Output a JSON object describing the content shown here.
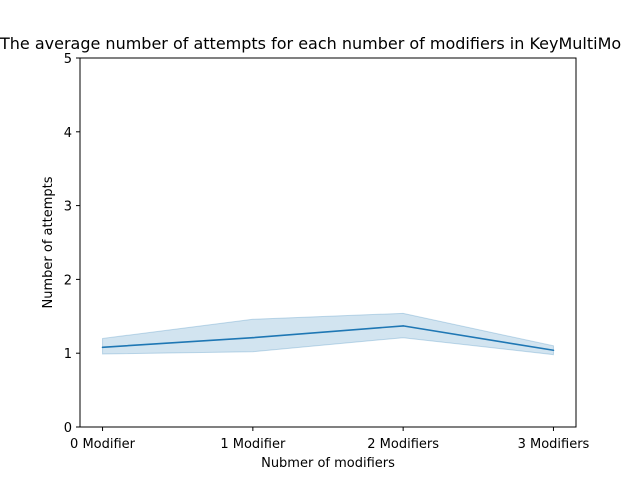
{
  "chart_data": {
    "type": "line",
    "title": "The average number of attempts for each number of modifiers in KeyMultiMo",
    "xlabel": "Nubmer of modifiers",
    "ylabel": "Number of attempts",
    "categories": [
      "0 Modifier",
      "1 Modifier",
      "2 Modifiers",
      "3 Modifiers"
    ],
    "ylim": [
      0,
      5
    ],
    "yticks": [
      "0",
      "1",
      "2",
      "3",
      "4",
      "5"
    ],
    "grid": false,
    "series": [
      {
        "values": [
          1.08,
          1.21,
          1.37,
          1.04
        ],
        "ci_lower": [
          0.99,
          1.02,
          1.21,
          0.98
        ],
        "ci_upper": [
          1.2,
          1.46,
          1.54,
          1.1
        ],
        "color": "#1f77b4",
        "band_color": "#1f77b4"
      }
    ]
  }
}
